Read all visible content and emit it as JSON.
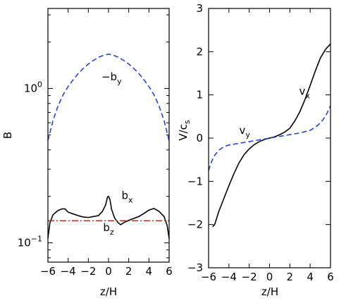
{
  "chart_data": [
    {
      "type": "line",
      "xlabel": "z/H",
      "ylabel": "B",
      "yscale": "log",
      "xlim": [
        -6,
        6
      ],
      "ylim": [
        0.075,
        3.3
      ],
      "x_ticks": [
        -6,
        -4,
        -2,
        0,
        2,
        4,
        6
      ],
      "y_ticks": [
        0.1,
        1
      ],
      "y_tick_labels": [
        {
          "base": "10",
          "exp": "−1"
        },
        {
          "base": "10",
          "exp": "0"
        }
      ],
      "series": [
        {
          "key": "neg_by",
          "color": "#2244dd",
          "style": "dashed",
          "points": [
            [
              -6,
              0.46
            ],
            [
              -5.5,
              0.62
            ],
            [
              -5,
              0.77
            ],
            [
              -4.5,
              0.91
            ],
            [
              -4,
              1.03
            ],
            [
              -3.5,
              1.14
            ],
            [
              -3,
              1.25
            ],
            [
              -2.5,
              1.35
            ],
            [
              -2,
              1.44
            ],
            [
              -1.5,
              1.52
            ],
            [
              -1,
              1.59
            ],
            [
              -0.5,
              1.64
            ],
            [
              0,
              1.67
            ],
            [
              0.5,
              1.64
            ],
            [
              1,
              1.59
            ],
            [
              1.5,
              1.52
            ],
            [
              2,
              1.44
            ],
            [
              2.5,
              1.35
            ],
            [
              3,
              1.25
            ],
            [
              3.5,
              1.14
            ],
            [
              4,
              1.03
            ],
            [
              4.5,
              0.91
            ],
            [
              5,
              0.77
            ],
            [
              5.5,
              0.62
            ],
            [
              6,
              0.46
            ]
          ]
        },
        {
          "key": "bx",
          "color": "#000000",
          "style": "solid",
          "points": [
            [
              -6,
              0.107
            ],
            [
              -5.8,
              0.135
            ],
            [
              -5.5,
              0.152
            ],
            [
              -5,
              0.162
            ],
            [
              -4.6,
              0.166
            ],
            [
              -4.3,
              0.166
            ],
            [
              -4,
              0.158
            ],
            [
              -3.5,
              0.154
            ],
            [
              -3,
              0.15
            ],
            [
              -2.5,
              0.147
            ],
            [
              -2,
              0.146
            ],
            [
              -1.5,
              0.148
            ],
            [
              -1,
              0.15
            ],
            [
              -0.6,
              0.16
            ],
            [
              -0.3,
              0.175
            ],
            [
              -0.1,
              0.198
            ],
            [
              0,
              0.2
            ],
            [
              0.15,
              0.19
            ],
            [
              0.3,
              0.165
            ],
            [
              0.6,
              0.145
            ],
            [
              0.9,
              0.136
            ],
            [
              1.2,
              0.131
            ],
            [
              1.5,
              0.135
            ],
            [
              2,
              0.14
            ],
            [
              2.5,
              0.144
            ],
            [
              3,
              0.148
            ],
            [
              3.5,
              0.155
            ],
            [
              4,
              0.163
            ],
            [
              4.5,
              0.167
            ],
            [
              5,
              0.16
            ],
            [
              5.5,
              0.148
            ],
            [
              5.8,
              0.13
            ],
            [
              6,
              0.107
            ]
          ]
        },
        {
          "key": "bz",
          "color": "#dd2222",
          "style": "dashdot",
          "points": [
            [
              -6,
              0.139
            ],
            [
              6,
              0.139
            ]
          ]
        }
      ],
      "annotations": [
        {
          "key": "neg_by_label",
          "text": "−b",
          "sub": "y",
          "x": 0.3,
          "y": 1.13
        },
        {
          "key": "bx_label",
          "text": "b",
          "sub": "x",
          "x": 1.85,
          "y": 0.192
        },
        {
          "key": "bz_label",
          "text": "b",
          "sub": "z",
          "x": 0.0,
          "y": 0.119
        }
      ]
    },
    {
      "type": "line",
      "xlabel": "z/H",
      "ylabel": "V/c",
      "ylabel_sub": "s",
      "xlim": [
        -6,
        6
      ],
      "ylim": [
        -3,
        3
      ],
      "x_ticks": [
        -6,
        -4,
        -2,
        0,
        2,
        4,
        6
      ],
      "y_ticks": [
        -3,
        -2,
        -1,
        0,
        1,
        2,
        3
      ],
      "series": [
        {
          "key": "vx",
          "color": "#000000",
          "style": "solid",
          "points": [
            [
              -5.6,
              -2.05
            ],
            [
              -5.4,
              -2.0
            ],
            [
              -5.2,
              -1.85
            ],
            [
              -5,
              -1.7
            ],
            [
              -4.5,
              -1.4
            ],
            [
              -4,
              -1.1
            ],
            [
              -3.5,
              -0.82
            ],
            [
              -3,
              -0.57
            ],
            [
              -2.5,
              -0.38
            ],
            [
              -2,
              -0.25
            ],
            [
              -1.5,
              -0.15
            ],
            [
              -1,
              -0.08
            ],
            [
              -0.5,
              -0.03
            ],
            [
              0,
              0
            ],
            [
              0.5,
              0.03
            ],
            [
              1,
              0.08
            ],
            [
              1.5,
              0.14
            ],
            [
              2,
              0.23
            ],
            [
              2.5,
              0.4
            ],
            [
              3,
              0.62
            ],
            [
              3.5,
              0.9
            ],
            [
              4,
              1.22
            ],
            [
              4.5,
              1.55
            ],
            [
              5,
              1.85
            ],
            [
              5.5,
              2.05
            ],
            [
              6,
              2.18
            ]
          ]
        },
        {
          "key": "vy",
          "color": "#2244dd",
          "style": "dashed",
          "points": [
            [
              -6,
              -0.75
            ],
            [
              -5.8,
              -0.6
            ],
            [
              -5.5,
              -0.43
            ],
            [
              -5,
              -0.28
            ],
            [
              -4.5,
              -0.2
            ],
            [
              -4,
              -0.16
            ],
            [
              -3.5,
              -0.14
            ],
            [
              -3,
              -0.12
            ],
            [
              -2.5,
              -0.1
            ],
            [
              -2,
              -0.08
            ],
            [
              -1.5,
              -0.06
            ],
            [
              -1,
              -0.04
            ],
            [
              -0.5,
              -0.02
            ],
            [
              0,
              0
            ],
            [
              0.5,
              0.02
            ],
            [
              1,
              0.04
            ],
            [
              1.5,
              0.06
            ],
            [
              2,
              0.08
            ],
            [
              2.5,
              0.1
            ],
            [
              3,
              0.12
            ],
            [
              3.5,
              0.15
            ],
            [
              4,
              0.18
            ],
            [
              4.5,
              0.25
            ],
            [
              5,
              0.35
            ],
            [
              5.5,
              0.5
            ],
            [
              6,
              0.75
            ]
          ]
        }
      ],
      "annotations": [
        {
          "key": "vx_label",
          "text": "v",
          "sub": "x",
          "x": 3.45,
          "y": 1.0
        },
        {
          "key": "vy_label",
          "text": "v",
          "sub": "y",
          "x": -2.45,
          "y": 0.1
        }
      ]
    }
  ]
}
